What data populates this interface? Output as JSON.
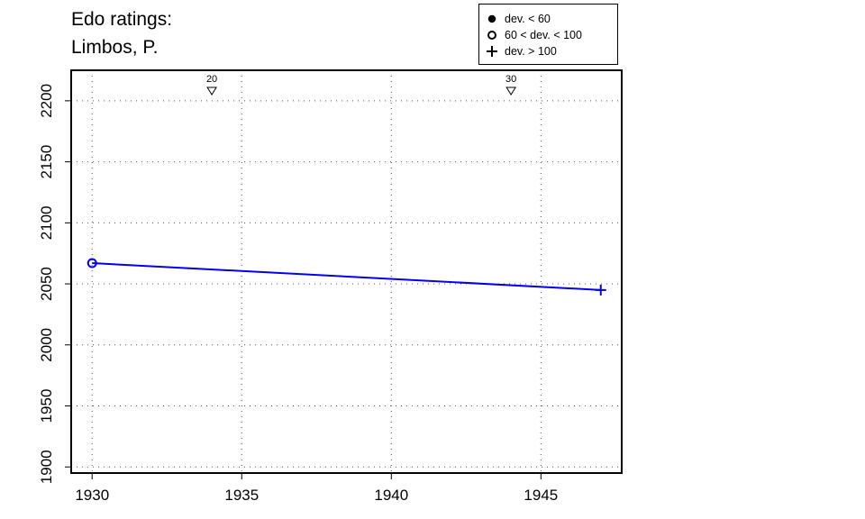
{
  "title": {
    "line1": "Edo ratings:",
    "line2": "Limbos, P."
  },
  "legend": {
    "items": [
      {
        "label": "dev. < 60",
        "marker": "filled-circle"
      },
      {
        "label": "60 < dev. < 100",
        "marker": "open-circle"
      },
      {
        "label": "dev. > 100",
        "marker": "plus"
      }
    ]
  },
  "chart_data": {
    "type": "line",
    "title": "Edo ratings: Limbos, P.",
    "xlabel": "",
    "ylabel": "",
    "xlim": [
      1929.3,
      1947.7
    ],
    "ylim": [
      1895,
      2225
    ],
    "x_ticks": [
      1930,
      1935,
      1940,
      1945
    ],
    "y_ticks": [
      1900,
      1950,
      2000,
      2050,
      2100,
      2150,
      2200
    ],
    "grid": "dotted",
    "legend_position": "top-right",
    "series": [
      {
        "color": "#0000ee",
        "points": [
          {
            "x": 1930,
            "y": 2067,
            "marker": "open-circle"
          },
          {
            "x": 1947,
            "y": 2045,
            "marker": "plus"
          }
        ]
      }
    ],
    "age_markers": [
      {
        "x": 1934,
        "label": "20"
      },
      {
        "x": 1944,
        "label": "30"
      }
    ]
  }
}
